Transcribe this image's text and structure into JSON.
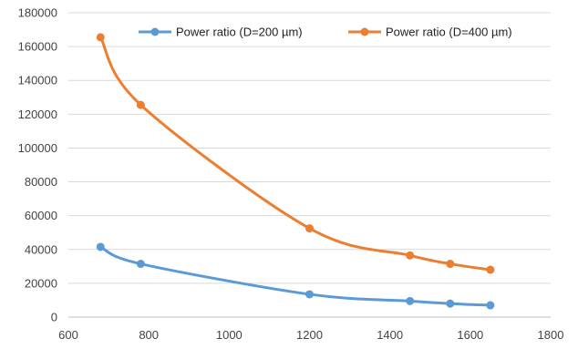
{
  "chart_data": {
    "type": "line",
    "title": "",
    "xlabel": "",
    "ylabel": "",
    "xlim": [
      600,
      1800
    ],
    "ylim": [
      0,
      180000
    ],
    "x_ticks": [
      600,
      800,
      1000,
      1200,
      1400,
      1600,
      1800
    ],
    "y_ticks": [
      0,
      20000,
      40000,
      60000,
      80000,
      100000,
      120000,
      140000,
      160000,
      180000
    ],
    "grid": "horizontal",
    "legend_position": "top",
    "smooth": true,
    "series": [
      {
        "name": "Power ratio (D=200 µm)",
        "color": "#5b9bd5",
        "x": [
          680,
          780,
          1200,
          1450,
          1550,
          1650
        ],
        "y": [
          41500,
          31500,
          13500,
          9500,
          8000,
          7000
        ]
      },
      {
        "name": "Power ratio (D=400 µm)",
        "color": "#ed7d31",
        "x": [
          680,
          780,
          1200,
          1450,
          1550,
          1650
        ],
        "y": [
          165500,
          125500,
          52500,
          36500,
          31500,
          28000
        ]
      }
    ]
  }
}
